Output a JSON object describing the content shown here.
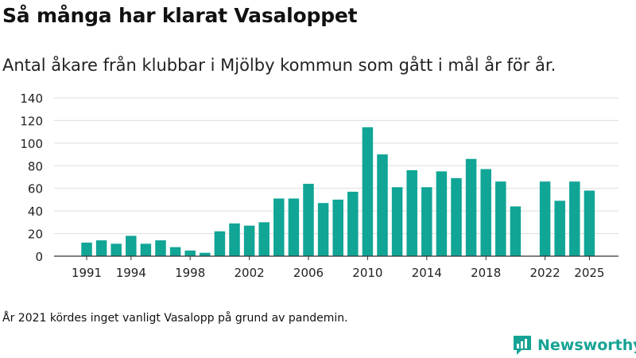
{
  "title": "Så många har klarat Vasaloppet",
  "subtitle": "Antal åkare från klubbar i Mjölby kommun som gått i mål år för år.",
  "footnote": "År 2021 kördes inget vanligt Vasalopp på grund av pandemin.",
  "brand": "Newsworthy",
  "colors": {
    "bar": "#11a596",
    "grid": "#dddddd",
    "axis": "#333333",
    "brand": "#16a394"
  },
  "chart_data": {
    "type": "bar",
    "categories": [
      "1991",
      "1992",
      "1993",
      "1994",
      "1995",
      "1996",
      "1997",
      "1998",
      "1999",
      "2000",
      "2001",
      "2002",
      "2003",
      "2004",
      "2005",
      "2006",
      "2007",
      "2008",
      "2009",
      "2010",
      "2011",
      "2012",
      "2013",
      "2014",
      "2015",
      "2016",
      "2017",
      "2018",
      "2019",
      "2020",
      "2021",
      "2022",
      "2023",
      "2024",
      "2025"
    ],
    "values": [
      12,
      14,
      11,
      18,
      11,
      14,
      8,
      5,
      3,
      22,
      29,
      27,
      30,
      51,
      51,
      64,
      47,
      50,
      57,
      114,
      90,
      61,
      76,
      61,
      75,
      69,
      86,
      77,
      66,
      44,
      null,
      66,
      49,
      66,
      58
    ],
    "xticks": [
      "1991",
      "1994",
      "1998",
      "2002",
      "2006",
      "2010",
      "2014",
      "2018",
      "2022",
      "2025"
    ],
    "yticks": [
      0,
      20,
      40,
      60,
      80,
      100,
      120,
      140
    ],
    "ylim": [
      0,
      140
    ],
    "grid": true,
    "xlabel": "",
    "ylabel": ""
  }
}
